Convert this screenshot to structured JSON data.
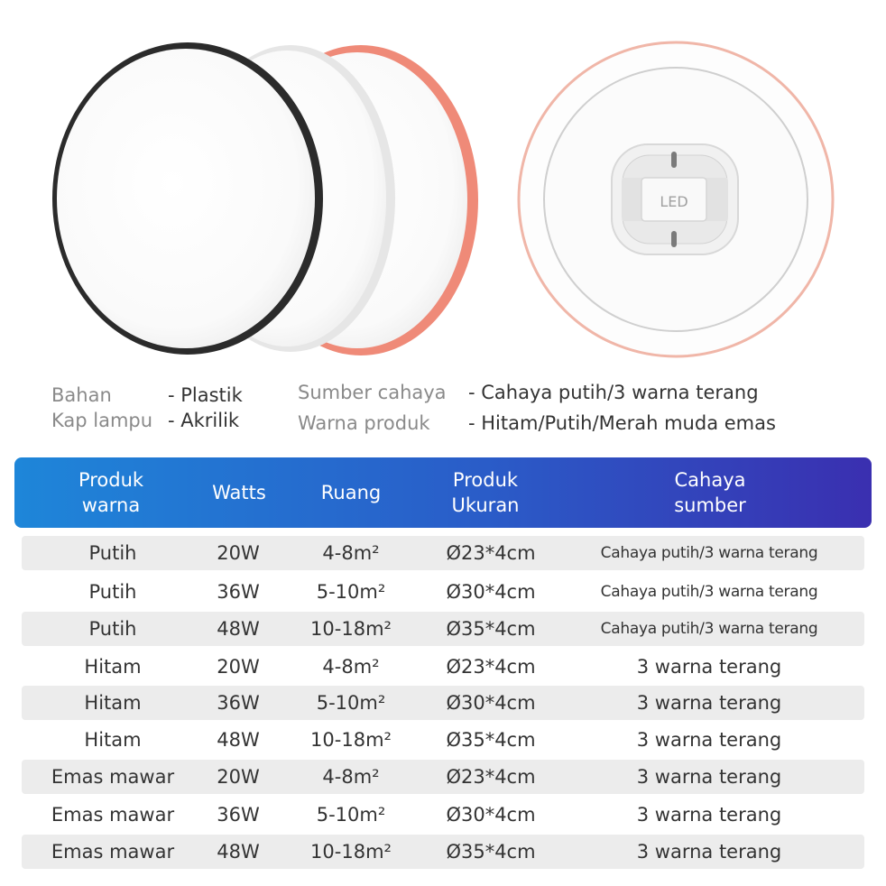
{
  "product_image": {
    "led_label": "LED"
  },
  "specs": [
    {
      "label": "Bahan",
      "value": "- Plastik"
    },
    {
      "label": "Kap lampu",
      "value": "- Akrilik"
    },
    {
      "label": "Sumber cahaya",
      "value": "- Cahaya putih/3 warna terang"
    },
    {
      "label": "Warna produk",
      "value": "- Hitam/Putih/Merah muda emas"
    }
  ],
  "table": {
    "headers": [
      "Produk\nwarna",
      "Watts",
      "Ruang",
      "Produk\nUkuran",
      "Cahaya\nsumber"
    ],
    "rows": [
      [
        "Putih",
        "20W",
        "4-8m²",
        "Ø23*4cm",
        "Cahaya putih/3 warna terang"
      ],
      [
        "Putih",
        "36W",
        "5-10m²",
        "Ø30*4cm",
        "Cahaya putih/3 warna terang"
      ],
      [
        "Putih",
        "48W",
        "10-18m²",
        "Ø35*4cm",
        "Cahaya putih/3 warna terang"
      ],
      [
        "Hitam",
        "20W",
        "4-8m²",
        "Ø23*4cm",
        "3 warna terang"
      ],
      [
        "Hitam",
        "36W",
        "5-10m²",
        "Ø30*4cm",
        "3 warna terang"
      ],
      [
        "Hitam",
        "48W",
        "10-18m²",
        "Ø35*4cm",
        "3 warna terang"
      ],
      [
        "Emas mawar",
        "20W",
        "4-8m²",
        "Ø23*4cm",
        "3 warna terang"
      ],
      [
        "Emas mawar",
        "36W",
        "5-10m²",
        "Ø30*4cm",
        "3 warna terang"
      ],
      [
        "Emas mawar",
        "48W",
        "10-18m²",
        "Ø35*4cm",
        "3 warna terang"
      ]
    ]
  },
  "colors": {
    "header_gradient_start": "#1e86d9",
    "header_gradient_end": "#3a2fb0",
    "black_frame": "#2b2b2b",
    "rose_gold_frame": "#ef8a78",
    "stripe": "#ececec"
  }
}
